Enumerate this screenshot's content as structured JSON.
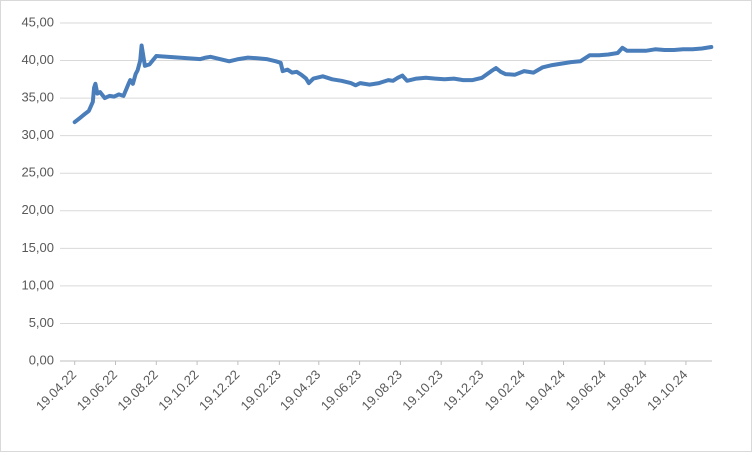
{
  "chart_data": {
    "type": "line",
    "x": [
      "2022-04-19",
      "2022-04-26",
      "2022-05-03",
      "2022-05-10",
      "2022-05-16",
      "2022-05-18",
      "2022-05-20",
      "2022-05-23",
      "2022-05-27",
      "2022-06-03",
      "2022-06-10",
      "2022-06-17",
      "2022-06-24",
      "2022-07-01",
      "2022-07-08",
      "2022-07-11",
      "2022-07-15",
      "2022-07-19",
      "2022-07-22",
      "2022-07-26",
      "2022-07-28",
      "2022-08-02",
      "2022-08-09",
      "2022-08-19",
      "2022-10-24",
      "2022-11-01",
      "2022-11-08",
      "2022-11-22",
      "2022-12-06",
      "2022-12-20",
      "2023-01-03",
      "2023-01-17",
      "2023-01-31",
      "2023-02-14",
      "2023-02-21",
      "2023-02-24",
      "2023-03-03",
      "2023-03-10",
      "2023-03-17",
      "2023-03-24",
      "2023-03-31",
      "2023-04-04",
      "2023-04-11",
      "2023-04-25",
      "2023-05-09",
      "2023-05-23",
      "2023-06-06",
      "2023-06-13",
      "2023-06-20",
      "2023-07-04",
      "2023-07-18",
      "2023-08-01",
      "2023-08-08",
      "2023-08-15",
      "2023-08-22",
      "2023-08-29",
      "2023-09-12",
      "2023-09-26",
      "2023-10-10",
      "2023-10-24",
      "2023-11-07",
      "2023-11-21",
      "2023-12-05",
      "2023-12-19",
      "2024-01-02",
      "2024-01-09",
      "2024-01-16",
      "2024-01-23",
      "2024-02-06",
      "2024-02-20",
      "2024-03-05",
      "2024-03-19",
      "2024-04-02",
      "2024-04-16",
      "2024-04-30",
      "2024-05-14",
      "2024-05-28",
      "2024-06-11",
      "2024-06-25",
      "2024-07-09",
      "2024-07-16",
      "2024-07-23",
      "2024-08-06",
      "2024-08-20",
      "2024-09-03",
      "2024-09-17",
      "2024-10-01",
      "2024-10-15",
      "2024-10-29",
      "2024-11-12",
      "2024-11-26"
    ],
    "series": [
      {
        "color": "#4a7ebb",
        "values": [
          31.8,
          32.3,
          32.8,
          33.3,
          34.5,
          36.4,
          36.9,
          35.6,
          35.8,
          35.0,
          35.3,
          35.2,
          35.5,
          35.3,
          36.8,
          37.4,
          36.9,
          38.2,
          38.7,
          40.0,
          42.0,
          39.3,
          39.5,
          40.6,
          40.2,
          40.4,
          40.5,
          40.2,
          39.9,
          40.2,
          40.4,
          40.3,
          40.2,
          39.9,
          39.7,
          38.6,
          38.8,
          38.4,
          38.5,
          38.1,
          37.6,
          37.0,
          37.6,
          37.9,
          37.5,
          37.3,
          37.0,
          36.7,
          37.0,
          36.8,
          37.0,
          37.4,
          37.3,
          37.7,
          38.0,
          37.3,
          37.6,
          37.7,
          37.6,
          37.5,
          37.6,
          37.4,
          37.4,
          37.7,
          38.6,
          39.0,
          38.5,
          38.2,
          38.1,
          38.6,
          38.4,
          39.1,
          39.4,
          39.6,
          39.8,
          39.9,
          40.7,
          40.7,
          40.8,
          41.0,
          41.7,
          41.3,
          41.3,
          41.3,
          41.5,
          41.4,
          41.4,
          41.5,
          41.5,
          41.6,
          41.8
        ]
      }
    ],
    "xlim": [
      "2022-03-28",
      "2024-11-27"
    ],
    "xticks": [
      {
        "value": "2022-04-19",
        "label": "19.04.22"
      },
      {
        "value": "2022-06-19",
        "label": "19.06.22"
      },
      {
        "value": "2022-08-19",
        "label": "19.08.22"
      },
      {
        "value": "2022-10-19",
        "label": "19.10.22"
      },
      {
        "value": "2022-12-19",
        "label": "19.12.22"
      },
      {
        "value": "2023-02-19",
        "label": "19.02.23"
      },
      {
        "value": "2023-04-19",
        "label": "19.04.23"
      },
      {
        "value": "2023-06-19",
        "label": "19.06.23"
      },
      {
        "value": "2023-08-19",
        "label": "19.08.23"
      },
      {
        "value": "2023-10-19",
        "label": "19.10.23"
      },
      {
        "value": "2023-12-19",
        "label": "19.12.23"
      },
      {
        "value": "2024-02-19",
        "label": "19.02.24"
      },
      {
        "value": "2024-04-19",
        "label": "19.04.24"
      },
      {
        "value": "2024-06-19",
        "label": "19.06.24"
      },
      {
        "value": "2024-08-19",
        "label": "19.08.24"
      },
      {
        "value": "2024-10-19",
        "label": "19.10.24"
      }
    ],
    "ylim": [
      0,
      45
    ],
    "yticks": [
      {
        "value": 0,
        "label": "0,00"
      },
      {
        "value": 5,
        "label": "5,00"
      },
      {
        "value": 10,
        "label": "10,00"
      },
      {
        "value": 15,
        "label": "15,00"
      },
      {
        "value": 20,
        "label": "20,00"
      },
      {
        "value": 25,
        "label": "25,00"
      },
      {
        "value": 30,
        "label": "30,00"
      },
      {
        "value": 35,
        "label": "35,00"
      },
      {
        "value": 40,
        "label": "40,00"
      },
      {
        "value": 45,
        "label": "45,00"
      }
    ],
    "grid": true
  }
}
